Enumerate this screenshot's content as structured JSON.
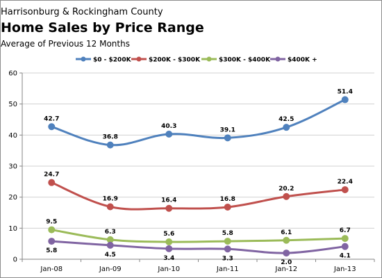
{
  "chart_data": {
    "type": "line",
    "supertitle": "Harrisonburg  & Rockingham County",
    "title": "Home Sales by Price Range",
    "subtitle": "Average of Previous  12 Months",
    "categories": [
      "Jan-08",
      "Jan-09",
      "Jan-10",
      "Jan-11",
      "Jan-12",
      "Jan-13"
    ],
    "ylim": [
      0,
      60
    ],
    "yticks": [
      0,
      10,
      20,
      30,
      40,
      50,
      60
    ],
    "grid": true,
    "legend_position": "top",
    "series": [
      {
        "name": "$0 - $200K",
        "color": "#4f81bd",
        "values": [
          42.7,
          36.8,
          40.3,
          39.1,
          42.5,
          51.4
        ],
        "labels": [
          "42.7",
          "36.8",
          "40.3",
          "39.1",
          "42.5",
          "51.4"
        ],
        "label_pos": "above"
      },
      {
        "name": "$200K - $300K",
        "color": "#c0504d",
        "values": [
          24.7,
          16.9,
          16.4,
          16.8,
          20.2,
          22.4
        ],
        "labels": [
          "24.7",
          "16.9",
          "16.4",
          "16.8",
          "20.2",
          "22.4"
        ],
        "label_pos": "above"
      },
      {
        "name": "$300K - $400K",
        "color": "#9bbb59",
        "values": [
          9.5,
          6.3,
          5.6,
          5.8,
          6.1,
          6.7
        ],
        "labels": [
          "9.5",
          "6.3",
          "5.6",
          "5.8",
          "6.1",
          "6.7"
        ],
        "label_pos": "above"
      },
      {
        "name": "$400K +",
        "color": "#8064a2",
        "values": [
          5.8,
          4.5,
          3.4,
          3.3,
          2.0,
          4.1
        ],
        "labels": [
          "5.8",
          "4.5",
          "3.4",
          "3.3",
          "2.0",
          "4.1"
        ],
        "label_pos": "below"
      }
    ]
  }
}
